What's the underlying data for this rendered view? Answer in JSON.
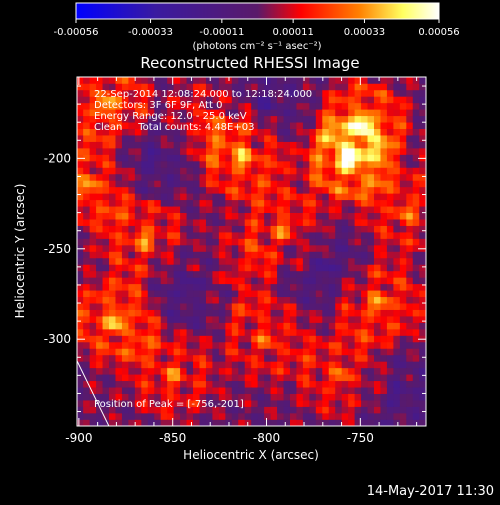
{
  "colorbar": {
    "tick_labels": [
      "-0.00056",
      "-0.00033",
      "-0.00011",
      "0.00011",
      "0.00033",
      "0.00056"
    ],
    "tick_values": [
      -0.00056,
      -0.00033,
      -0.00011,
      0.00011,
      0.00033,
      0.00056
    ],
    "range": [
      -0.00056,
      0.00056
    ],
    "units_label": "(photons cm⁻² s⁻¹ asec⁻²)",
    "colors": [
      "#0000ff",
      "#3a1aa0",
      "#5a1a6a",
      "#ff0000",
      "#ff8000",
      "#ffff60",
      "#ffffff"
    ]
  },
  "chart_data": {
    "type": "heatmap",
    "title": "Reconstructed RHESSI Image",
    "xlabel": "Heliocentric X (arcsec)",
    "ylabel": "Heliocentric Y (arcsec)",
    "x_tick_labels": [
      "-900",
      "-850",
      "-800",
      "-750"
    ],
    "x_ticks": [
      -900,
      -850,
      -800,
      -750
    ],
    "y_tick_labels": [
      "-200",
      "-250",
      "-300"
    ],
    "y_ticks": [
      -200,
      -250,
      -300
    ],
    "xlim": [
      -901,
      -715
    ],
    "ylim": [
      -348,
      -155
    ],
    "annotations": [
      "22-Sep-2014 12:08:24.000 to 12:18:24.000",
      "Detectors: 3F 6F 9F, Att 0",
      "Energy Range: 12.0 - 25.0 keV",
      "Clean     Total counts: 4.48E+03"
    ],
    "peak_label": "Position of Peak = [-756,-201]",
    "peak": [
      -756,
      -201
    ],
    "limb_line": [
      [
        -901,
        -312
      ],
      [
        -884,
        -348
      ]
    ],
    "hot_spots": [
      {
        "x": -885,
        "y": -170,
        "v": 0.00042
      },
      {
        "x": -895,
        "y": -215,
        "v": 0.00038
      },
      {
        "x": -865,
        "y": -245,
        "v": 0.00035
      },
      {
        "x": -880,
        "y": -290,
        "v": 0.00045
      },
      {
        "x": -850,
        "y": -320,
        "v": 0.0003
      },
      {
        "x": -812,
        "y": -200,
        "v": 0.0004
      },
      {
        "x": -790,
        "y": -240,
        "v": 0.00033
      },
      {
        "x": -756,
        "y": -201,
        "v": 0.00056
      },
      {
        "x": -748,
        "y": -180,
        "v": 0.00045
      },
      {
        "x": -740,
        "y": -280,
        "v": 0.00038
      },
      {
        "x": -760,
        "y": -320,
        "v": 0.0003
      },
      {
        "x": -800,
        "y": -300,
        "v": 0.00028
      },
      {
        "x": -830,
        "y": -180,
        "v": 0.00025
      },
      {
        "x": -725,
        "y": -230,
        "v": 0.0003
      },
      {
        "x": -820,
        "y": -265,
        "v": 0.00025
      }
    ],
    "cold_spots": [
      {
        "x": -840,
        "y": -270,
        "v": -0.0003
      },
      {
        "x": -770,
        "y": -260,
        "v": -0.00025
      },
      {
        "x": -800,
        "y": -170,
        "v": -0.0002
      },
      {
        "x": -860,
        "y": -200,
        "v": -0.00022
      },
      {
        "x": -730,
        "y": -330,
        "v": -0.00018
      }
    ]
  },
  "footer": {
    "date_time": "14-May-2017 11:30"
  }
}
